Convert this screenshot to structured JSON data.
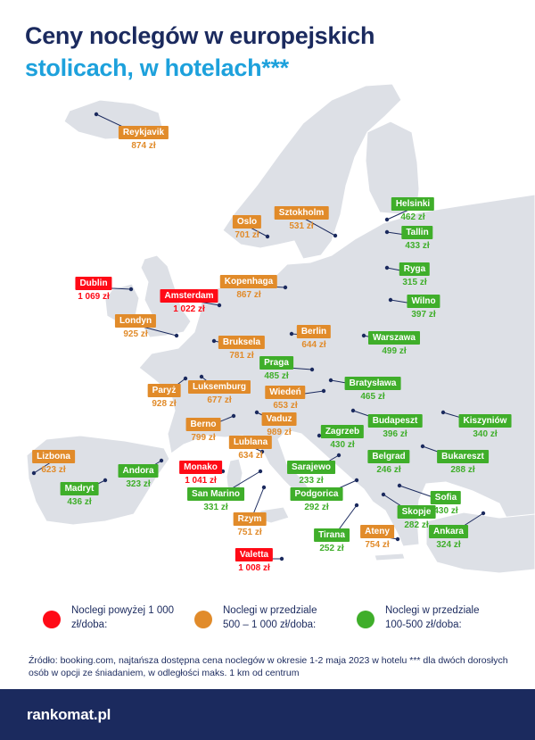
{
  "title": {
    "line1": "Ceny noclegów w europejskich",
    "line2": "stolicach, w hotelach***"
  },
  "colors": {
    "red": "#ff0a16",
    "orange": "#e18b2a",
    "green": "#3fae2a",
    "navy": "#1b2a5e",
    "accent": "#1da1dc"
  },
  "cities": [
    {
      "name": "Reykjavik",
      "price": "874 zł",
      "cat": "orange"
    },
    {
      "name": "Helsinki",
      "price": "462 zł",
      "cat": "green"
    },
    {
      "name": "Tallin",
      "price": "433 zł",
      "cat": "green"
    },
    {
      "name": "Sztokholm",
      "price": "531 zł",
      "cat": "orange"
    },
    {
      "name": "Oslo",
      "price": "701 zł",
      "cat": "orange"
    },
    {
      "name": "Ryga",
      "price": "315 zł",
      "cat": "green"
    },
    {
      "name": "Dublin",
      "price": "1 069 zł",
      "cat": "red"
    },
    {
      "name": "Kopenhaga",
      "price": "867 zł",
      "cat": "orange"
    },
    {
      "name": "Amsterdam",
      "price": "1 022 zł",
      "cat": "red"
    },
    {
      "name": "Wilno",
      "price": "397 zł",
      "cat": "green"
    },
    {
      "name": "Londyn",
      "price": "925 zł",
      "cat": "orange"
    },
    {
      "name": "Berlin",
      "price": "644 zł",
      "cat": "orange"
    },
    {
      "name": "Warszawa",
      "price": "499 zł",
      "cat": "green"
    },
    {
      "name": "Bruksela",
      "price": "781 zł",
      "cat": "orange"
    },
    {
      "name": "Praga",
      "price": "485 zł",
      "cat": "green"
    },
    {
      "name": "Paryż",
      "price": "928 zł",
      "cat": "orange"
    },
    {
      "name": "Luksemburg",
      "price": "677 zł",
      "cat": "orange"
    },
    {
      "name": "Wiedeń",
      "price": "653 zł",
      "cat": "orange"
    },
    {
      "name": "Bratysława",
      "price": "465 zł",
      "cat": "green"
    },
    {
      "name": "Kiszyniów",
      "price": "340 zł",
      "cat": "green"
    },
    {
      "name": "Berno",
      "price": "799 zł",
      "cat": "orange"
    },
    {
      "name": "Vaduz",
      "price": "989 zł",
      "cat": "orange"
    },
    {
      "name": "Budapeszt",
      "price": "396 zł",
      "cat": "green"
    },
    {
      "name": "Zagrzeb",
      "price": "430 zł",
      "cat": "green"
    },
    {
      "name": "Lublana",
      "price": "634 zł",
      "cat": "orange"
    },
    {
      "name": "Lizbona",
      "price": "623 zł",
      "cat": "orange"
    },
    {
      "name": "Andora",
      "price": "323 zł",
      "cat": "green"
    },
    {
      "name": "Monako",
      "price": "1 041 zł",
      "cat": "red"
    },
    {
      "name": "Bukareszt",
      "price": "288 zł",
      "cat": "green"
    },
    {
      "name": "Belgrad",
      "price": "246 zł",
      "cat": "green"
    },
    {
      "name": "Sarajewo",
      "price": "233 zł",
      "cat": "green"
    },
    {
      "name": "Madryt",
      "price": "436 zł",
      "cat": "green"
    },
    {
      "name": "San Marino",
      "price": "331 zł",
      "cat": "green"
    },
    {
      "name": "Sofia",
      "price": "430 zł",
      "cat": "green"
    },
    {
      "name": "Podgorica",
      "price": "292 zł",
      "cat": "green"
    },
    {
      "name": "Skopje",
      "price": "282 zł",
      "cat": "green"
    },
    {
      "name": "Rzym",
      "price": "751 zł",
      "cat": "orange"
    },
    {
      "name": "Ankara",
      "price": "324 zł",
      "cat": "green"
    },
    {
      "name": "Tirana",
      "price": "252 zł",
      "cat": "green"
    },
    {
      "name": "Ateny",
      "price": "754 zł",
      "cat": "orange"
    },
    {
      "name": "Valetta",
      "price": "1 008 zł",
      "cat": "red"
    }
  ],
  "legend": [
    {
      "text": "Noclegi powyżej 1 000 zł/doba:",
      "cat": "red"
    },
    {
      "text": "Noclegi w przedziale 500 – 1 000 zł/doba:",
      "cat": "orange"
    },
    {
      "text": "Noclegi w przedziale 100-500 zł/doba:",
      "cat": "green"
    }
  ],
  "source": "Źródło: booking.com, najtańsza dostępna cena noclegów w okresie 1-2 maja 2023 w hotelu *** dla dwóch dorosłych osób w opcji ze śniadaniem, w odległości maks. 1 km od centrum",
  "brand": "rankomat.pl"
}
